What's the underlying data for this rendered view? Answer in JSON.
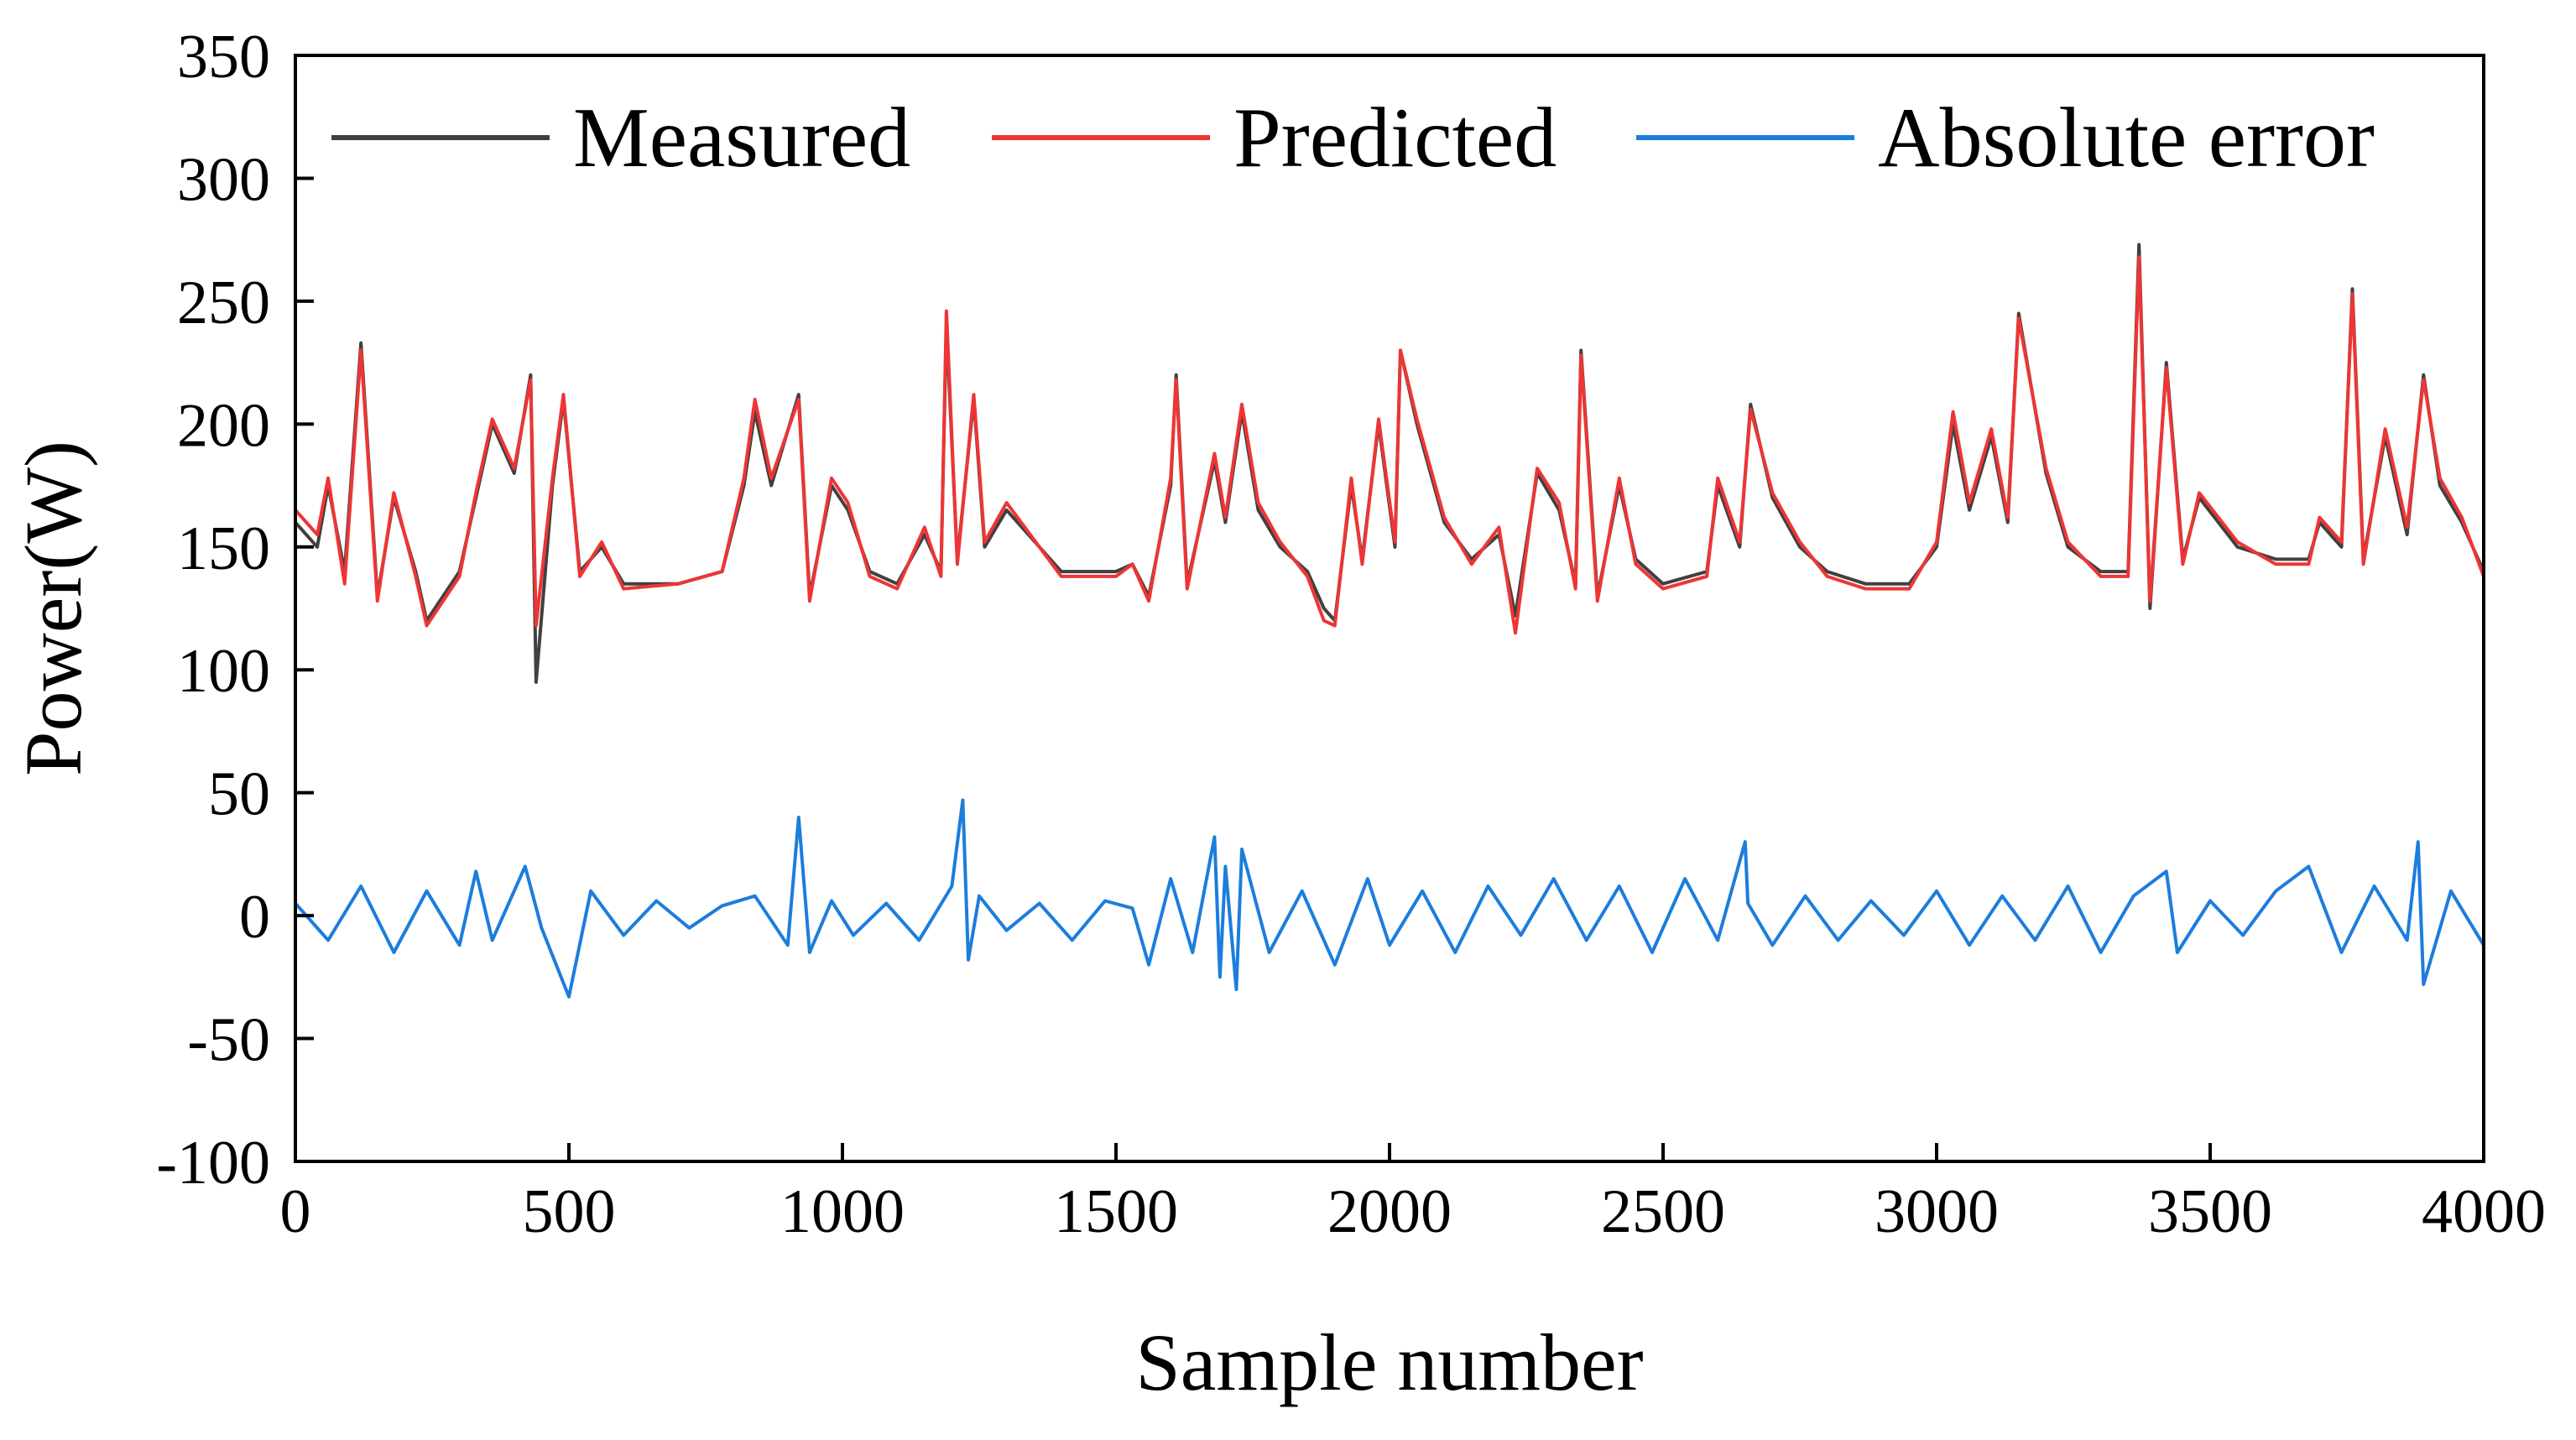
{
  "chart_data": {
    "type": "line",
    "title": "",
    "xlabel": "Sample number",
    "ylabel": "Power(W)",
    "xlim": [
      0,
      4000
    ],
    "ylim": [
      -100,
      350
    ],
    "xticks": [
      0,
      500,
      1000,
      1500,
      2000,
      2500,
      3000,
      3500,
      4000
    ],
    "yticks": [
      -100,
      -50,
      0,
      50,
      100,
      150,
      200,
      250,
      300,
      350
    ],
    "xtick_labels": [
      "0",
      "500",
      "1000",
      "1500",
      "2000",
      "2500",
      "3000",
      "3500",
      "4000"
    ],
    "ytick_labels": [
      "-100",
      "-50",
      "0",
      "50",
      "100",
      "150",
      "200",
      "250",
      "300",
      "350"
    ],
    "grid": false,
    "legend_position": "top",
    "series": [
      {
        "name": "Measured",
        "color": "#404040",
        "x": [
          0,
          40,
          60,
          90,
          120,
          150,
          180,
          220,
          240,
          300,
          330,
          360,
          400,
          430,
          440,
          470,
          490,
          520,
          560,
          600,
          700,
          780,
          820,
          840,
          870,
          920,
          940,
          980,
          1010,
          1050,
          1100,
          1150,
          1180,
          1190,
          1210,
          1240,
          1260,
          1300,
          1400,
          1500,
          1530,
          1560,
          1600,
          1610,
          1630,
          1680,
          1700,
          1730,
          1760,
          1800,
          1850,
          1880,
          1900,
          1930,
          1950,
          1980,
          2010,
          2020,
          2050,
          2100,
          2150,
          2200,
          2230,
          2270,
          2310,
          2340,
          2350,
          2380,
          2420,
          2450,
          2500,
          2580,
          2600,
          2640,
          2660,
          2700,
          2750,
          2800,
          2870,
          2950,
          3000,
          3030,
          3060,
          3100,
          3130,
          3150,
          3200,
          3240,
          3300,
          3350,
          3370,
          3390,
          3420,
          3450,
          3480,
          3550,
          3620,
          3680,
          3700,
          3740,
          3760,
          3780,
          3820,
          3860,
          3890,
          3920,
          3960,
          4000
        ],
        "values": [
          160,
          150,
          175,
          140,
          233,
          130,
          170,
          140,
          120,
          140,
          170,
          200,
          180,
          220,
          95,
          175,
          210,
          140,
          150,
          135,
          135,
          140,
          175,
          205,
          175,
          212,
          130,
          175,
          165,
          140,
          135,
          155,
          140,
          240,
          145,
          210,
          150,
          165,
          140,
          140,
          143,
          130,
          175,
          220,
          135,
          185,
          160,
          205,
          165,
          150,
          140,
          125,
          120,
          175,
          145,
          200,
          150,
          230,
          200,
          160,
          145,
          155,
          122,
          180,
          165,
          135,
          230,
          130,
          175,
          145,
          135,
          140,
          175,
          150,
          208,
          170,
          150,
          140,
          135,
          135,
          150,
          200,
          165,
          195,
          160,
          245,
          180,
          150,
          140,
          140,
          273,
          125,
          225,
          145,
          170,
          150,
          145,
          145,
          160,
          150,
          255,
          145,
          195,
          155,
          220,
          175,
          160,
          140
        ]
      },
      {
        "name": "Predicted",
        "color": "#ee3535",
        "x": [
          0,
          40,
          60,
          90,
          120,
          150,
          180,
          220,
          240,
          300,
          330,
          360,
          400,
          430,
          440,
          470,
          490,
          520,
          560,
          600,
          700,
          780,
          820,
          840,
          870,
          920,
          940,
          980,
          1010,
          1050,
          1100,
          1150,
          1180,
          1190,
          1210,
          1240,
          1260,
          1300,
          1400,
          1500,
          1530,
          1560,
          1600,
          1610,
          1630,
          1680,
          1700,
          1730,
          1760,
          1800,
          1850,
          1880,
          1900,
          1930,
          1950,
          1980,
          2010,
          2020,
          2050,
          2100,
          2150,
          2200,
          2230,
          2270,
          2310,
          2340,
          2350,
          2380,
          2420,
          2450,
          2500,
          2580,
          2600,
          2640,
          2660,
          2700,
          2750,
          2800,
          2870,
          2950,
          3000,
          3030,
          3060,
          3100,
          3130,
          3150,
          3200,
          3240,
          3300,
          3350,
          3370,
          3390,
          3420,
          3450,
          3480,
          3550,
          3620,
          3680,
          3700,
          3740,
          3760,
          3780,
          3820,
          3860,
          3890,
          3920,
          3960,
          4000
        ],
        "values": [
          165,
          155,
          178,
          135,
          230,
          128,
          172,
          138,
          118,
          138,
          172,
          202,
          182,
          218,
          118,
          178,
          212,
          138,
          152,
          133,
          135,
          140,
          178,
          210,
          178,
          210,
          128,
          178,
          168,
          138,
          133,
          158,
          138,
          246,
          143,
          212,
          152,
          168,
          138,
          138,
          143,
          128,
          178,
          218,
          133,
          188,
          162,
          208,
          168,
          152,
          138,
          120,
          118,
          178,
          143,
          202,
          152,
          230,
          202,
          162,
          143,
          158,
          115,
          182,
          168,
          133,
          228,
          128,
          178,
          143,
          133,
          138,
          178,
          152,
          206,
          172,
          152,
          138,
          133,
          133,
          152,
          205,
          168,
          198,
          162,
          243,
          182,
          152,
          138,
          138,
          268,
          128,
          223,
          143,
          172,
          152,
          143,
          143,
          162,
          152,
          253,
          143,
          198,
          158,
          218,
          178,
          162,
          138
        ]
      },
      {
        "name": "Absolute error",
        "color": "#1c7ddc",
        "x": [
          0,
          60,
          120,
          180,
          240,
          300,
          330,
          360,
          420,
          450,
          500,
          540,
          600,
          660,
          720,
          780,
          840,
          900,
          920,
          940,
          980,
          1020,
          1080,
          1140,
          1200,
          1220,
          1230,
          1250,
          1300,
          1360,
          1420,
          1480,
          1530,
          1560,
          1600,
          1640,
          1680,
          1690,
          1700,
          1720,
          1730,
          1780,
          1840,
          1900,
          1960,
          2000,
          2060,
          2120,
          2180,
          2240,
          2300,
          2360,
          2420,
          2480,
          2540,
          2600,
          2650,
          2655,
          2700,
          2760,
          2820,
          2880,
          2940,
          3000,
          3060,
          3120,
          3180,
          3240,
          3300,
          3360,
          3420,
          3440,
          3500,
          3560,
          3620,
          3680,
          3740,
          3800,
          3860,
          3880,
          3890,
          3940,
          4000
        ],
        "values": [
          5,
          -10,
          12,
          -15,
          10,
          -12,
          18,
          -10,
          20,
          -5,
          -33,
          10,
          -8,
          6,
          -5,
          4,
          8,
          -12,
          40,
          -15,
          6,
          -8,
          5,
          -10,
          12,
          47,
          -18,
          8,
          -6,
          5,
          -10,
          6,
          3,
          -20,
          15,
          -15,
          32,
          -25,
          20,
          -30,
          27,
          -15,
          10,
          -20,
          15,
          -12,
          10,
          -15,
          12,
          -8,
          15,
          -10,
          12,
          -15,
          15,
          -10,
          30,
          5,
          -12,
          8,
          -10,
          6,
          -8,
          10,
          -12,
          8,
          -10,
          12,
          -15,
          8,
          18,
          -15,
          6,
          -8,
          10,
          20,
          -15,
          12,
          -10,
          30,
          -28,
          10,
          -12
        ]
      }
    ]
  }
}
